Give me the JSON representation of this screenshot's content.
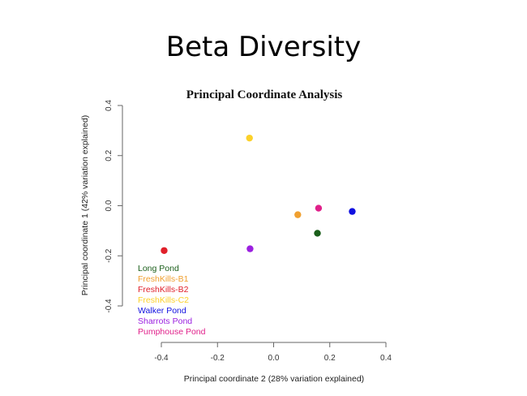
{
  "slide": {
    "title": "Beta Diversity"
  },
  "chart_data": {
    "type": "scatter",
    "title": "Principal Coordinate Analysis",
    "xlabel": "Principal coordinate 2 (28% variation explained)",
    "ylabel": "Principal coordinate 1 (42% variation explained)",
    "xlim": [
      -0.4,
      0.4
    ],
    "ylim": [
      -0.4,
      0.4
    ],
    "xticks": [
      -0.4,
      -0.2,
      0.0,
      0.2,
      0.4
    ],
    "xtick_labels": [
      "-0.4",
      "-0.2",
      "0.0",
      "0.2",
      "0.4"
    ],
    "yticks": [
      -0.4,
      -0.2,
      0.0,
      0.2,
      0.4
    ],
    "ytick_labels": [
      "-0.4",
      "-0.2",
      "0.0",
      "0.2",
      "0.4"
    ],
    "grid": false,
    "legend_position": "bottom-left",
    "series": [
      {
        "name": "Long Pond",
        "color": "#1a5e1a",
        "x": 0.156,
        "y": -0.11
      },
      {
        "name": "FreshKills-B1",
        "color": "#f0a030",
        "x": 0.086,
        "y": -0.036
      },
      {
        "name": "FreshKills-B2",
        "color": "#e0202a",
        "x": -0.39,
        "y": -0.179
      },
      {
        "name": "FreshKills-C2",
        "color": "#fcd12a",
        "x": -0.086,
        "y": 0.27
      },
      {
        "name": "Walker Pond",
        "color": "#1010e0",
        "x": 0.28,
        "y": -0.023
      },
      {
        "name": "Sharrots Pond",
        "color": "#9b20e0",
        "x": -0.084,
        "y": -0.172
      },
      {
        "name": "Pumphouse Pond",
        "color": "#e0208a",
        "x": 0.16,
        "y": -0.01
      }
    ]
  }
}
